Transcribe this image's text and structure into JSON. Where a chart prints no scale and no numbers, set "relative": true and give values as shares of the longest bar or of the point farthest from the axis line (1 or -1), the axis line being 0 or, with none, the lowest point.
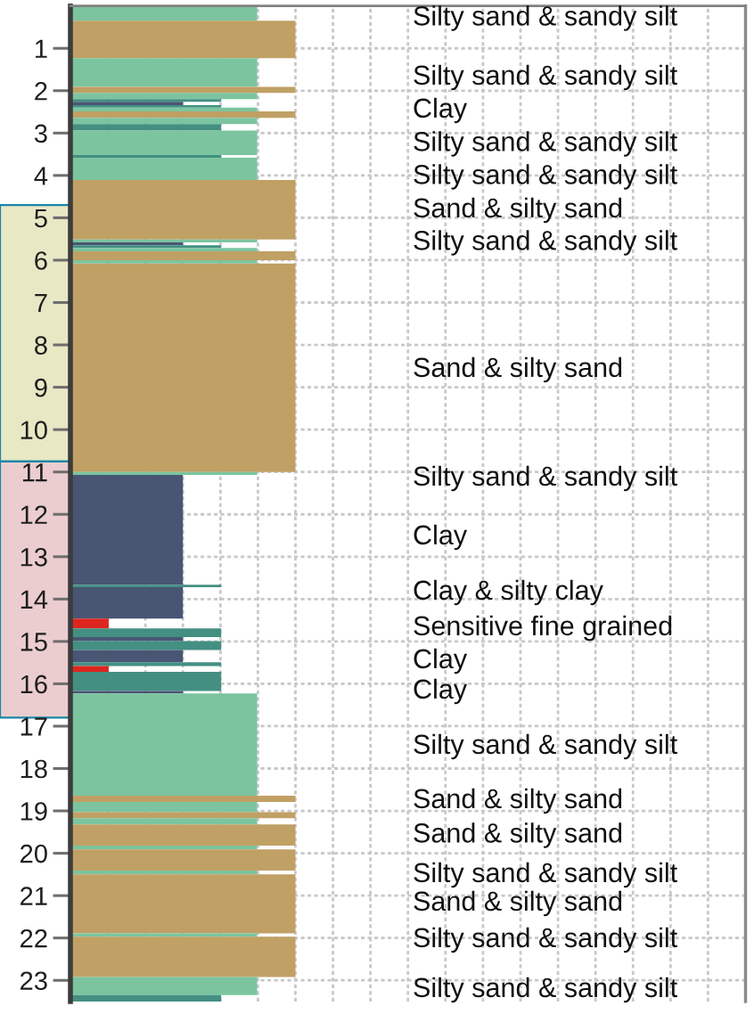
{
  "chart_data": {
    "type": "bar",
    "orientation": "horizontal",
    "relative": true,
    "x": [
      0.175,
      0.79,
      1.57,
      1.98,
      2.125,
      2.23,
      2.3,
      2.37,
      2.445,
      2.565,
      2.715,
      2.865,
      3.23,
      3.55,
      3.845,
      4.81,
      5.545,
      5.615,
      5.68,
      5.75,
      5.895,
      6.04,
      8.54,
      11.035,
      12.365,
      13.69,
      14.09,
      14.575,
      14.795,
      14.945,
      15.095,
      15.345,
      15.535,
      15.65,
      15.945,
      16.2,
      17.435,
      18.715,
      18.91,
      19.1,
      19.245,
      19.57,
      19.865,
      20.16,
      20.455,
      21.195,
      21.93,
      22.445,
      23.135,
      23.425
    ],
    "values": [
      0.83,
      1,
      0.83,
      1,
      0.83,
      0.67,
      0.5,
      0.67,
      0.83,
      1,
      0.83,
      0.67,
      0.83,
      0.67,
      0.83,
      1,
      0.83,
      0.5,
      0.67,
      0.83,
      1,
      0.83,
      1,
      0.83,
      0.5,
      0.67,
      0.5,
      0.17,
      0.67,
      0.5,
      0.67,
      0.5,
      0.67,
      0.17,
      0.67,
      0.5,
      0.83,
      1,
      0.83,
      1,
      0.83,
      1,
      0.83,
      1,
      0.83,
      1,
      0.83,
      1,
      0.83,
      0.67
    ],
    "colors": [
      "#7bc49f",
      "#c0a064",
      "#7bc49f",
      "#c0a064",
      "#7bc49f",
      "#438f82",
      "#485674",
      "#438f82",
      "#7bc49f",
      "#c0a064",
      "#7bc49f",
      "#438f82",
      "#7bc49f",
      "#438f82",
      "#7bc49f",
      "#c0a064",
      "#7bc49f",
      "#485674",
      "#438f82",
      "#7bc49f",
      "#c0a064",
      "#7bc49f",
      "#c0a064",
      "#7bc49f",
      "#485674",
      "#438f82",
      "#485674",
      "#dc261e",
      "#438f82",
      "#485674",
      "#438f82",
      "#485674",
      "#438f82",
      "#dc261e",
      "#438f82",
      "#485674",
      "#7bc49f",
      "#c0a064",
      "#7bc49f",
      "#c0a064",
      "#7bc49f",
      "#c0a064",
      "#7bc49f",
      "#c0a064",
      "#7bc49f",
      "#c0a064",
      "#7bc49f",
      "#c0a064",
      "#7bc49f",
      "#438f82"
    ],
    "ylim": [
      23.5,
      0
    ],
    "yticks": [
      1,
      2,
      3,
      4,
      5,
      6,
      7,
      8,
      9,
      10,
      11,
      12,
      13,
      14,
      15,
      16,
      17,
      18,
      19,
      20,
      21,
      22,
      23
    ],
    "grid": true,
    "tick_labels": "y",
    "bands": [
      {
        "axis": "y",
        "from": 4.7,
        "to": 10.75,
        "color": "#e8e8c4"
      },
      {
        "axis": "y",
        "from": 10.75,
        "to": 16.8,
        "color": "#ebcdd0"
      }
    ],
    "annotations": [
      "Silty sand & sandy silt",
      "Silty sand & sandy silt",
      "Clay",
      "Silty sand & sandy silt",
      "Silty sand & sandy silt",
      "Sand & silty sand",
      "Silty sand & sandy silt",
      "Sand & silty sand",
      "Silty sand & sandy silt",
      "Clay",
      "Clay & silty clay",
      "Sensitive fine grained",
      "Clay",
      "Clay",
      "Silty sand & sandy silt",
      "Sand & silty sand",
      "Sand & silty sand",
      "Silty sand & sandy silt",
      "Sand & silty sand",
      "Silty sand & sandy silt",
      "Silty sand & sandy silt"
    ]
  }
}
